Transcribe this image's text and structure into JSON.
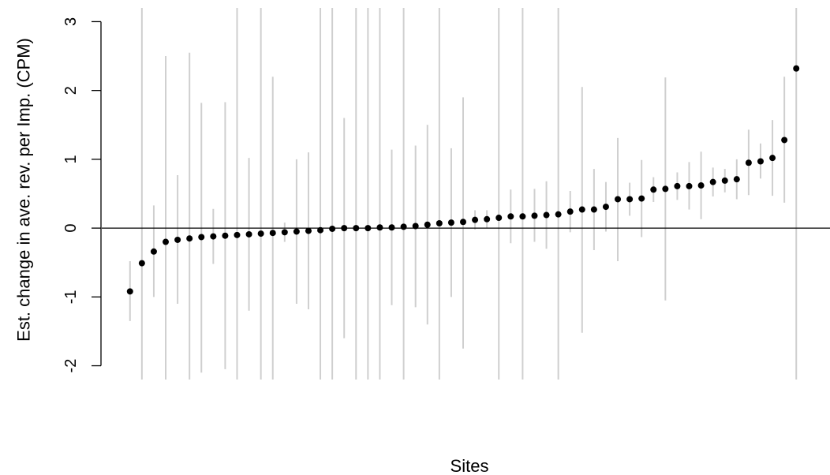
{
  "chart_data": {
    "type": "scatter",
    "title": "",
    "xlabel": "Sites",
    "ylabel": "Est. change in ave. rev. per Imp. (CPM)",
    "ylim": [
      -2.2,
      3.2
    ],
    "yticks": [
      -2,
      -1,
      0,
      1,
      2,
      3
    ],
    "x_axis_drawn": false,
    "reference_line_y": 0,
    "grid": false,
    "series": [
      {
        "points": [
          {
            "x": 1,
            "y": -0.92,
            "lo": -1.35,
            "hi": -0.48
          },
          {
            "x": 2,
            "y": -0.51,
            "lo": -3.5,
            "hi": 3.5
          },
          {
            "x": 3,
            "y": -0.34,
            "lo": -1.0,
            "hi": 0.33
          },
          {
            "x": 4,
            "y": -0.2,
            "lo": -3.5,
            "hi": 2.5
          },
          {
            "x": 5,
            "y": -0.17,
            "lo": -1.1,
            "hi": 0.77
          },
          {
            "x": 6,
            "y": -0.15,
            "lo": -3.5,
            "hi": 2.55
          },
          {
            "x": 7,
            "y": -0.13,
            "lo": -2.1,
            "hi": 1.82
          },
          {
            "x": 8,
            "y": -0.12,
            "lo": -0.52,
            "hi": 0.28
          },
          {
            "x": 9,
            "y": -0.11,
            "lo": -2.05,
            "hi": 1.83
          },
          {
            "x": 10,
            "y": -0.1,
            "lo": -3.5,
            "hi": 3.5
          },
          {
            "x": 11,
            "y": -0.09,
            "lo": -1.2,
            "hi": 1.02
          },
          {
            "x": 12,
            "y": -0.08,
            "lo": -3.5,
            "hi": 3.5
          },
          {
            "x": 13,
            "y": -0.07,
            "lo": -3.5,
            "hi": 2.2
          },
          {
            "x": 14,
            "y": -0.06,
            "lo": -0.2,
            "hi": 0.08
          },
          {
            "x": 15,
            "y": -0.05,
            "lo": -1.1,
            "hi": 1.0
          },
          {
            "x": 16,
            "y": -0.04,
            "lo": -1.18,
            "hi": 1.1
          },
          {
            "x": 17,
            "y": -0.03,
            "lo": -3.5,
            "hi": 3.5
          },
          {
            "x": 18,
            "y": -0.01,
            "lo": -3.5,
            "hi": 3.5
          },
          {
            "x": 19,
            "y": 0.0,
            "lo": -1.6,
            "hi": 1.6
          },
          {
            "x": 20,
            "y": 0.0,
            "lo": -3.5,
            "hi": 3.5
          },
          {
            "x": 21,
            "y": 0.0,
            "lo": -3.5,
            "hi": 3.5
          },
          {
            "x": 22,
            "y": 0.01,
            "lo": -3.5,
            "hi": 3.5
          },
          {
            "x": 23,
            "y": 0.01,
            "lo": -1.12,
            "hi": 1.14
          },
          {
            "x": 24,
            "y": 0.02,
            "lo": -3.5,
            "hi": 3.5
          },
          {
            "x": 25,
            "y": 0.03,
            "lo": -1.15,
            "hi": 1.2
          },
          {
            "x": 26,
            "y": 0.05,
            "lo": -1.4,
            "hi": 1.5
          },
          {
            "x": 27,
            "y": 0.07,
            "lo": -3.5,
            "hi": 3.5
          },
          {
            "x": 28,
            "y": 0.08,
            "lo": -1.0,
            "hi": 1.16
          },
          {
            "x": 29,
            "y": 0.09,
            "lo": -1.75,
            "hi": 1.9
          },
          {
            "x": 30,
            "y": 0.12,
            "lo": -0.02,
            "hi": 0.26
          },
          {
            "x": 31,
            "y": 0.13,
            "lo": 0.0,
            "hi": 0.26
          },
          {
            "x": 32,
            "y": 0.15,
            "lo": -3.5,
            "hi": 3.5
          },
          {
            "x": 33,
            "y": 0.17,
            "lo": -0.22,
            "hi": 0.56
          },
          {
            "x": 34,
            "y": 0.17,
            "lo": -3.5,
            "hi": 3.5
          },
          {
            "x": 35,
            "y": 0.18,
            "lo": -0.2,
            "hi": 0.57
          },
          {
            "x": 36,
            "y": 0.19,
            "lo": -0.3,
            "hi": 0.68
          },
          {
            "x": 37,
            "y": 0.2,
            "lo": -3.5,
            "hi": 3.5
          },
          {
            "x": 38,
            "y": 0.24,
            "lo": -0.06,
            "hi": 0.54
          },
          {
            "x": 39,
            "y": 0.27,
            "lo": -1.52,
            "hi": 2.05
          },
          {
            "x": 40,
            "y": 0.27,
            "lo": -0.32,
            "hi": 0.86
          },
          {
            "x": 41,
            "y": 0.31,
            "lo": -0.05,
            "hi": 0.67
          },
          {
            "x": 42,
            "y": 0.42,
            "lo": -0.48,
            "hi": 1.31
          },
          {
            "x": 43,
            "y": 0.42,
            "lo": 0.18,
            "hi": 0.66
          },
          {
            "x": 44,
            "y": 0.43,
            "lo": -0.13,
            "hi": 0.99
          },
          {
            "x": 45,
            "y": 0.56,
            "lo": 0.38,
            "hi": 0.74
          },
          {
            "x": 46,
            "y": 0.57,
            "lo": -1.05,
            "hi": 2.19
          },
          {
            "x": 47,
            "y": 0.61,
            "lo": 0.41,
            "hi": 0.81
          },
          {
            "x": 48,
            "y": 0.61,
            "lo": 0.27,
            "hi": 0.96
          },
          {
            "x": 49,
            "y": 0.62,
            "lo": 0.13,
            "hi": 1.11
          },
          {
            "x": 50,
            "y": 0.67,
            "lo": 0.46,
            "hi": 0.88
          },
          {
            "x": 51,
            "y": 0.69,
            "lo": 0.52,
            "hi": 0.86
          },
          {
            "x": 52,
            "y": 0.71,
            "lo": 0.42,
            "hi": 1.0
          },
          {
            "x": 53,
            "y": 0.95,
            "lo": 0.48,
            "hi": 1.43
          },
          {
            "x": 54,
            "y": 0.97,
            "lo": 0.72,
            "hi": 1.23
          },
          {
            "x": 55,
            "y": 1.02,
            "lo": 0.47,
            "hi": 1.57
          },
          {
            "x": 56,
            "y": 1.28,
            "lo": 0.37,
            "hi": 2.2
          },
          {
            "x": 57,
            "y": 2.32,
            "lo": -3.5,
            "hi": 3.5
          }
        ]
      }
    ]
  }
}
